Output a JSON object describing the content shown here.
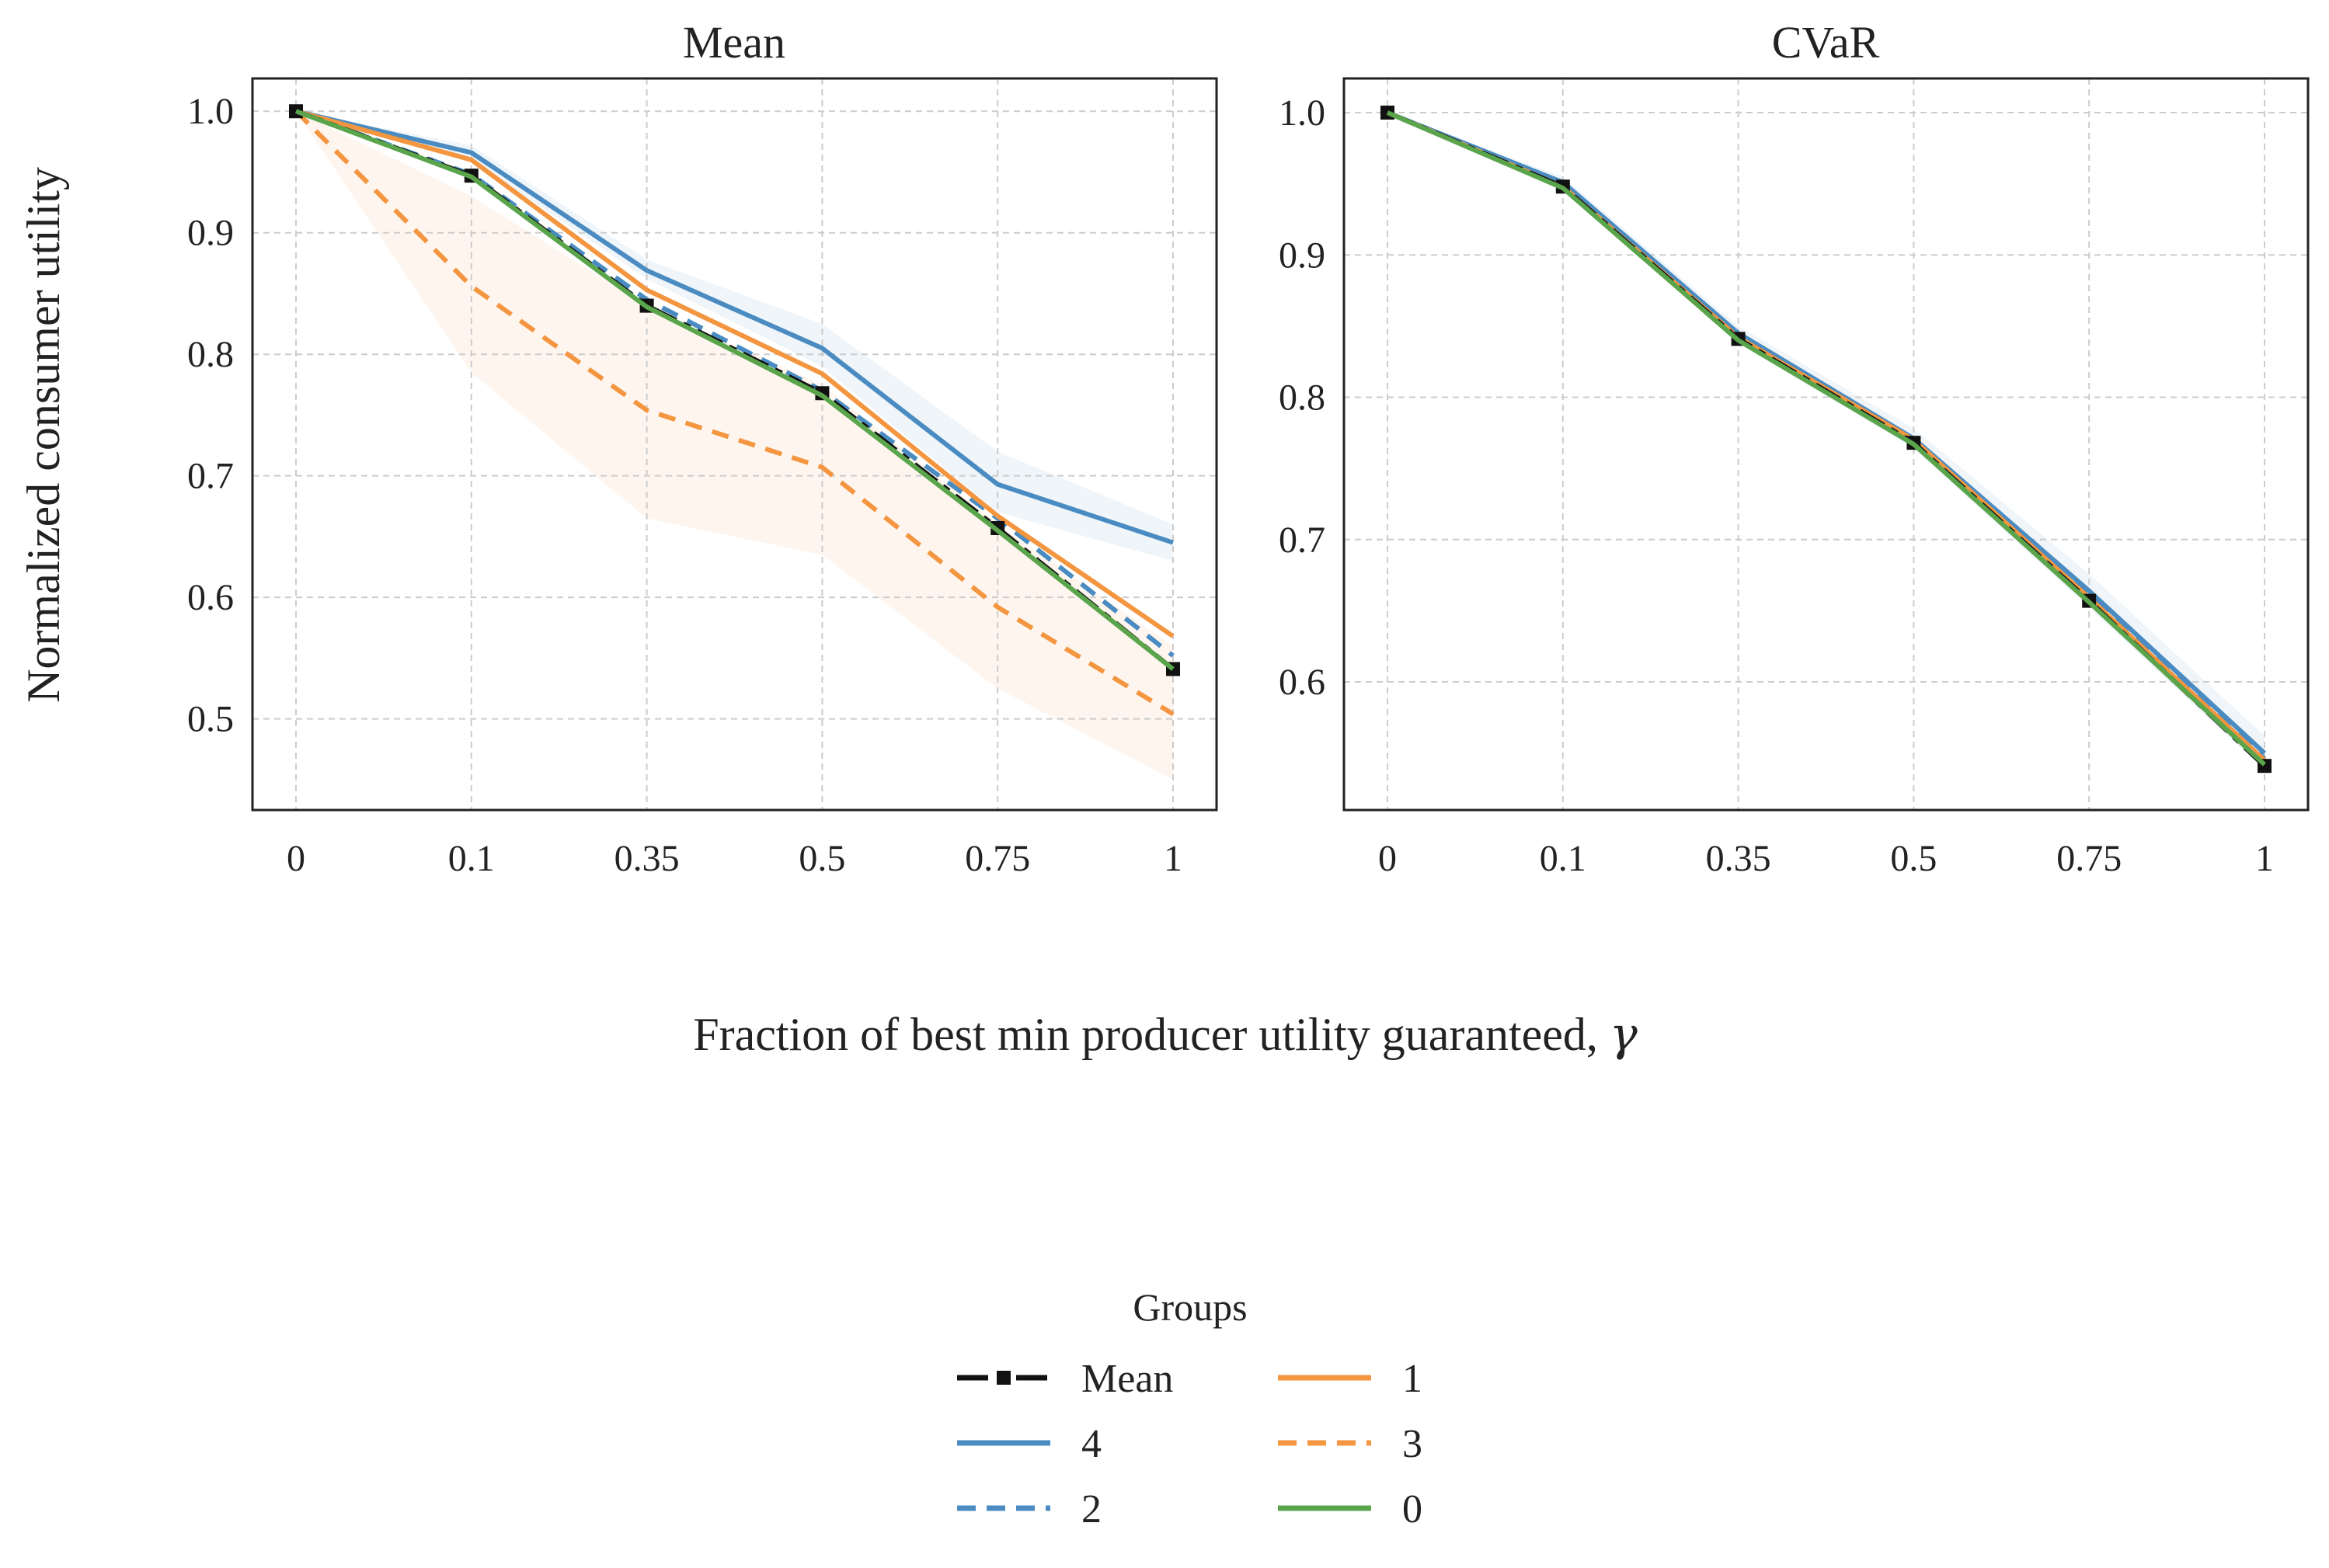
{
  "figure": {
    "xlabel": "Fraction of best min producer utility guaranteed, ",
    "xlabel_symbol": "γ",
    "ylabel": "Normalized consumer utility"
  },
  "legend": {
    "title": "Groups",
    "placement": "bottom-center",
    "columns": 2,
    "entries": [
      "Mean",
      "4",
      "2",
      "1",
      "3",
      "0"
    ]
  },
  "colors": {
    "mean": "#111111",
    "group_4": "#4a8cc2",
    "group_2": "#4a8cc2",
    "group_1": "#f4953f",
    "group_3": "#f4953f",
    "group_0": "#5aa54c",
    "grid": "#cccccc"
  },
  "chart_data": [
    {
      "type": "line",
      "title": "Mean",
      "categories": [
        "0",
        "0.1",
        "0.35",
        "0.5",
        "0.75",
        "1"
      ],
      "yticks": [
        "1.0",
        "0.9",
        "0.8",
        "0.7",
        "0.6",
        "0.5"
      ],
      "ylim": [
        0.425,
        1.027
      ],
      "grid": true,
      "series": [
        {
          "name": "Mean",
          "values": [
            1.0,
            0.947,
            0.84,
            0.768,
            0.657,
            0.541
          ]
        },
        {
          "name": "4",
          "values": [
            1.0,
            0.966,
            0.869,
            0.805,
            0.693,
            0.645
          ]
        },
        {
          "name": "2",
          "values": [
            1.0,
            0.948,
            0.845,
            0.77,
            0.665,
            0.552
          ]
        },
        {
          "name": "1",
          "values": [
            1.0,
            0.96,
            0.853,
            0.784,
            0.667,
            0.568
          ]
        },
        {
          "name": "3",
          "values": [
            1.0,
            0.856,
            0.754,
            0.707,
            0.592,
            0.504
          ]
        },
        {
          "name": "0",
          "values": [
            1.0,
            0.946,
            0.839,
            0.766,
            0.655,
            0.541
          ]
        }
      ],
      "bands": [
        {
          "name": "4",
          "lower": [
            1.0,
            0.96,
            0.862,
            0.79,
            0.67,
            0.63
          ],
          "upper": [
            1.0,
            0.972,
            0.878,
            0.825,
            0.72,
            0.66
          ]
        },
        {
          "name": "3",
          "lower": [
            1.0,
            0.785,
            0.665,
            0.635,
            0.525,
            0.45
          ],
          "upper": [
            1.0,
            0.93,
            0.84,
            0.775,
            0.66,
            0.56
          ]
        }
      ]
    },
    {
      "type": "line",
      "title": "CVaR",
      "categories": [
        "0",
        "0.1",
        "0.35",
        "0.5",
        "0.75",
        "1"
      ],
      "yticks": [
        "1.0",
        "0.9",
        "0.8",
        "0.7",
        "0.6"
      ],
      "ylim": [
        0.51,
        1.024
      ],
      "grid": true,
      "series": [
        {
          "name": "Mean",
          "values": [
            1.0,
            0.948,
            0.841,
            0.768,
            0.657,
            0.541
          ]
        },
        {
          "name": "4",
          "values": [
            1.0,
            0.951,
            0.845,
            0.771,
            0.664,
            0.55
          ]
        },
        {
          "name": "2",
          "values": [
            1.0,
            0.949,
            0.843,
            0.769,
            0.66,
            0.546
          ]
        },
        {
          "name": "1",
          "values": [
            1.0,
            0.948,
            0.842,
            0.77,
            0.659,
            0.545
          ]
        },
        {
          "name": "3",
          "values": [
            1.0,
            0.948,
            0.842,
            0.769,
            0.658,
            0.544
          ]
        },
        {
          "name": "0",
          "values": [
            1.0,
            0.947,
            0.84,
            0.767,
            0.656,
            0.542
          ]
        }
      ],
      "bands": [
        {
          "name": "4",
          "lower": [
            1.0,
            0.946,
            0.838,
            0.764,
            0.652,
            0.538
          ],
          "upper": [
            1.0,
            0.955,
            0.85,
            0.778,
            0.676,
            0.562
          ]
        }
      ]
    }
  ]
}
